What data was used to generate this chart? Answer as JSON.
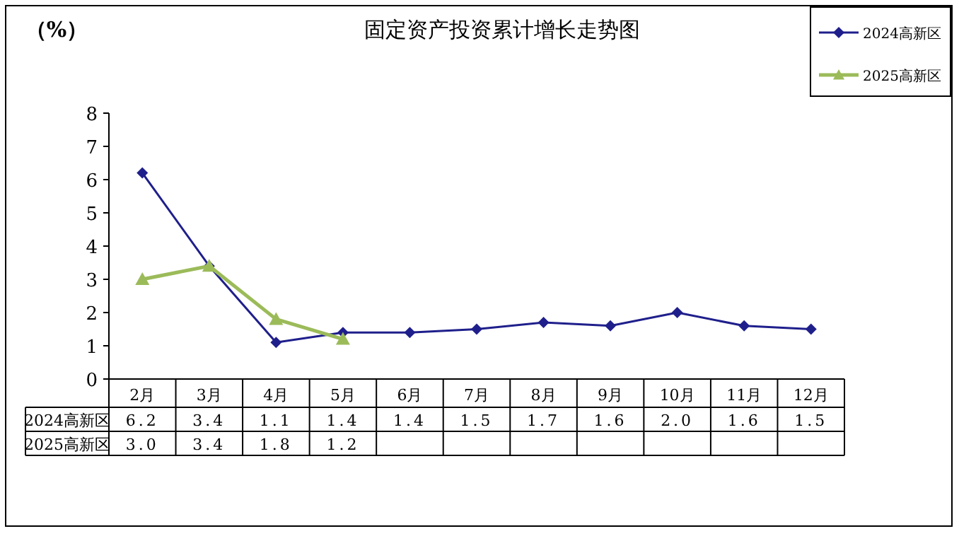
{
  "chart_data": {
    "type": "line",
    "title": "固定资产投资累计增长走势图",
    "ylabel": "（%）",
    "categories": [
      "2月",
      "3月",
      "4月",
      "5月",
      "6月",
      "7月",
      "8月",
      "9月",
      "10月",
      "11月",
      "12月"
    ],
    "ylim": [
      0,
      8
    ],
    "yticks": [
      0,
      1,
      2,
      3,
      4,
      5,
      6,
      7,
      8
    ],
    "grid": false,
    "legend": "top right",
    "line_style": "solid",
    "series": [
      {
        "name": "2024高新区",
        "color": "#1f1f8c",
        "marker": "diamond",
        "values": [
          6.2,
          3.4,
          1.1,
          1.4,
          1.4,
          1.5,
          1.7,
          1.6,
          2.0,
          1.6,
          1.5
        ],
        "value_labels": [
          "6.2",
          "3.4",
          "1.1",
          "1.4",
          "1.4",
          "1.5",
          "1.7",
          "1.6",
          "2.0",
          "1.6",
          "1.5"
        ]
      },
      {
        "name": "2025高新区",
        "color": "#9bbb59",
        "marker": "triangle",
        "values": [
          3.0,
          3.4,
          1.8,
          1.2,
          null,
          null,
          null,
          null,
          null,
          null,
          null
        ],
        "value_labels": [
          "3.0",
          "3.4",
          "1.8",
          "1.2",
          null,
          null,
          null,
          null,
          null,
          null,
          null
        ]
      }
    ]
  }
}
